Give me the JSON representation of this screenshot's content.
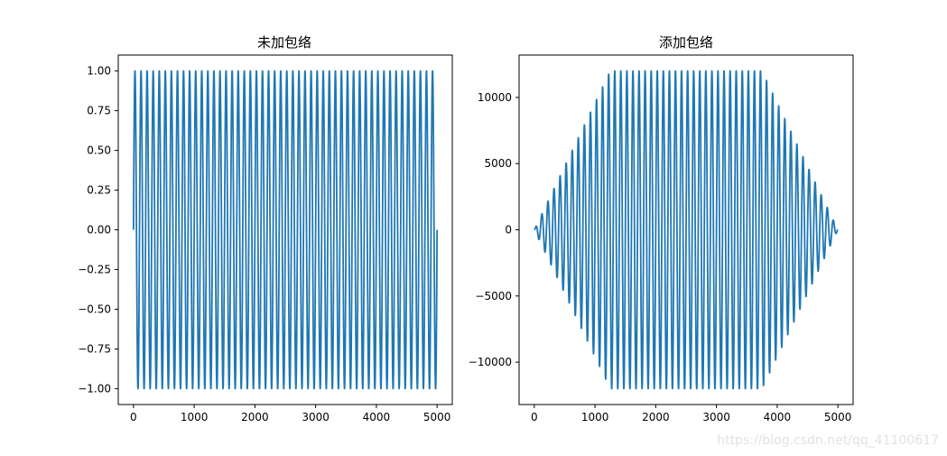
{
  "chart_data": [
    {
      "type": "line",
      "title": "未加包络",
      "xlabel": "",
      "ylabel": "",
      "xlim": [
        -250,
        5250
      ],
      "ylim": [
        -1.1,
        1.1
      ],
      "xticks": [
        0,
        1000,
        2000,
        3000,
        4000,
        5000
      ],
      "xtick_labels": [
        "0",
        "1000",
        "2000",
        "3000",
        "4000",
        "5000"
      ],
      "yticks": [
        1.0,
        0.75,
        0.5,
        0.25,
        0.0,
        -0.25,
        -0.5,
        -0.75,
        -1.0
      ],
      "ytick_labels": [
        "1.00",
        "0.75",
        "0.50",
        "0.25",
        "0.00",
        "−0.25",
        "−0.50",
        "−0.75",
        "−1.00"
      ],
      "grid": false,
      "series": [
        {
          "color": "#1f77b4",
          "function": "sine",
          "x_range": [
            0,
            5000
          ],
          "cycles": 50,
          "amplitude": 1.0,
          "envelope": "none"
        }
      ]
    },
    {
      "type": "line",
      "title": "添加包络",
      "xlabel": "",
      "ylabel": "",
      "xlim": [
        -250,
        5250
      ],
      "ylim": [
        -13200,
        13200
      ],
      "xticks": [
        0,
        1000,
        2000,
        3000,
        4000,
        5000
      ],
      "xtick_labels": [
        "0",
        "1000",
        "2000",
        "3000",
        "4000",
        "5000"
      ],
      "yticks": [
        10000,
        5000,
        0,
        -5000,
        -10000
      ],
      "ytick_labels": [
        "10000",
        "5000",
        "0",
        "−5000",
        "−10000"
      ],
      "grid": false,
      "series": [
        {
          "color": "#1f77b4",
          "function": "sine",
          "x_range": [
            0,
            5000
          ],
          "cycles": 50,
          "amplitude": 12000,
          "envelope": "trapezoid",
          "envelope_ramp_up_end": 1250,
          "envelope_ramp_down_start": 3750
        }
      ]
    }
  ],
  "watermark": "https://blog.csdn.net/qq_41100617"
}
